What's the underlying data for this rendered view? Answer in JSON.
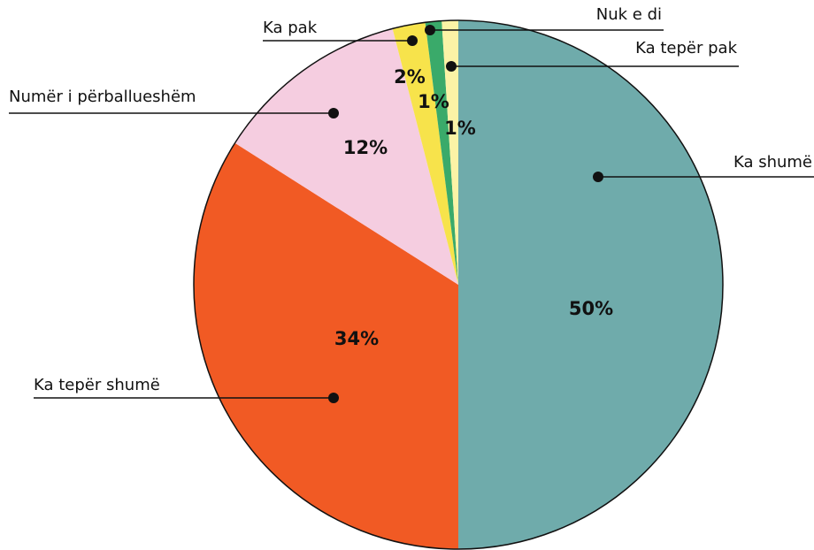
{
  "chart_data": {
    "type": "pie",
    "categories": [
      "Ka shumë",
      "Ka tepër shumë",
      "Numër i përballueshëm",
      "Ka pak",
      "Nuk e di",
      "Ka tepër pak"
    ],
    "values": [
      50,
      34,
      12,
      2,
      1,
      1
    ],
    "value_labels": [
      "50%",
      "34%",
      "12%",
      "2%",
      "1%",
      "1%"
    ],
    "colors": [
      "#6fabab",
      "#f15a24",
      "#f5cde0",
      "#f7e34b",
      "#3aaa6a",
      "#fbf3a6"
    ]
  }
}
